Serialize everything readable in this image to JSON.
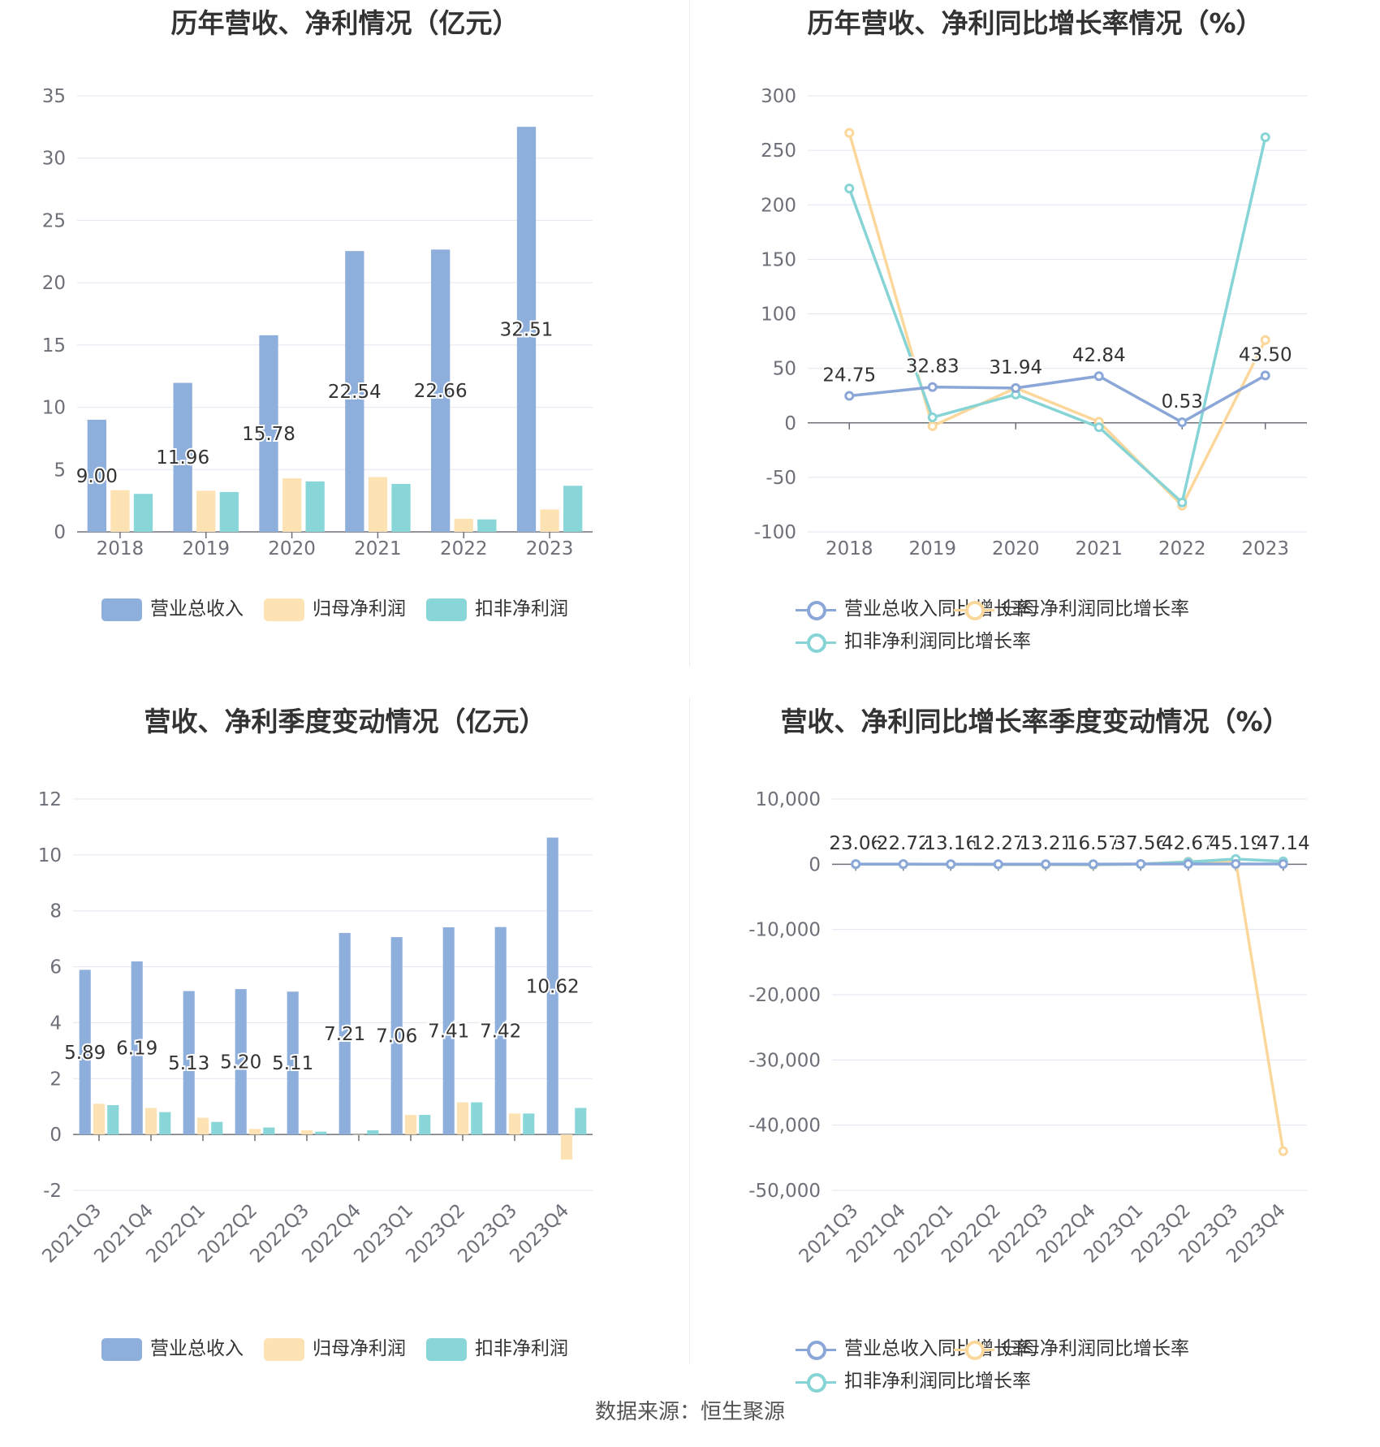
{
  "source": "数据来源：恒生聚源",
  "colors": {
    "revenue": "#8eaedb",
    "net": "#fde3b3",
    "deducted": "#88d6d8",
    "line_revenue": "#8aa7d8",
    "line_net": "#fbd79b",
    "line_deducted": "#86d4d6"
  },
  "chart_data": [
    {
      "id": "p0",
      "type": "bar",
      "title": "历年营收、净利情况（亿元）",
      "categories": [
        "2018",
        "2019",
        "2020",
        "2021",
        "2022",
        "2023"
      ],
      "ylim": [
        0,
        35
      ],
      "yticks": [
        0,
        5,
        10,
        15,
        20,
        25,
        30,
        35
      ],
      "ytick_labels": [
        "0",
        "5",
        "10",
        "15",
        "20",
        "25",
        "30",
        "35"
      ],
      "grid": true,
      "legend_position": "bottom",
      "series": [
        {
          "name": "营业总收入",
          "values": [
            9.0,
            11.96,
            15.78,
            22.54,
            22.66,
            32.51
          ],
          "labels": [
            "9.00",
            "11.96",
            "15.78",
            "22.54",
            "22.66",
            "32.51"
          ]
        },
        {
          "name": "归母净利润",
          "values": [
            3.35,
            3.3,
            4.3,
            4.4,
            1.05,
            1.8
          ]
        },
        {
          "name": "扣非净利润",
          "values": [
            3.05,
            3.2,
            4.05,
            3.85,
            1.0,
            3.7
          ]
        }
      ]
    },
    {
      "id": "p1",
      "type": "line",
      "title": "历年营收、净利同比增长率情况（%）",
      "categories": [
        "2018",
        "2019",
        "2020",
        "2021",
        "2022",
        "2023"
      ],
      "ylim": [
        -100,
        300
      ],
      "yticks": [
        -100,
        -50,
        0,
        50,
        100,
        150,
        200,
        250,
        300
      ],
      "ytick_labels": [
        "-100",
        "-50",
        "0",
        "50",
        "100",
        "150",
        "200",
        "250",
        "300"
      ],
      "grid": true,
      "legend_position": "bottom",
      "series": [
        {
          "name": "营业总收入同比增长率",
          "values": [
            24.75,
            32.83,
            31.94,
            42.84,
            0.53,
            43.5
          ],
          "labels": [
            "24.75",
            "32.83",
            "31.94",
            "42.84",
            "0.53",
            "43.50"
          ]
        },
        {
          "name": "归母净利润同比增长率",
          "values": [
            266,
            -3,
            32,
            1,
            -76,
            76
          ]
        },
        {
          "name": "扣非净利润同比增长率",
          "values": [
            215,
            5,
            26,
            -4,
            -73,
            262
          ]
        }
      ]
    },
    {
      "id": "p2",
      "type": "bar",
      "title": "营收、净利季度变动情况（亿元）",
      "categories": [
        "2021Q3",
        "2021Q4",
        "2022Q1",
        "2022Q2",
        "2022Q3",
        "2022Q4",
        "2023Q1",
        "2023Q2",
        "2023Q3",
        "2023Q4"
      ],
      "ylim": [
        -2,
        12
      ],
      "yticks": [
        -2,
        0,
        2,
        4,
        6,
        8,
        10,
        12
      ],
      "ytick_labels": [
        "-2",
        "0",
        "2",
        "4",
        "6",
        "8",
        "10",
        "12"
      ],
      "grid": true,
      "legend_position": "bottom",
      "series": [
        {
          "name": "营业总收入",
          "values": [
            5.89,
            6.19,
            5.13,
            5.2,
            5.11,
            7.21,
            7.06,
            7.41,
            7.42,
            10.62
          ],
          "labels": [
            "5.89",
            "6.19",
            "5.13",
            "5.20",
            "5.11",
            "7.21",
            "7.06",
            "7.41",
            "7.42",
            "10.62"
          ]
        },
        {
          "name": "归母净利润",
          "values": [
            1.1,
            0.95,
            0.6,
            0.2,
            0.15,
            0.0,
            0.7,
            1.15,
            0.75,
            -0.9
          ]
        },
        {
          "name": "扣非净利润",
          "values": [
            1.05,
            0.8,
            0.45,
            0.25,
            0.1,
            0.15,
            0.7,
            1.15,
            0.75,
            0.95
          ]
        }
      ]
    },
    {
      "id": "p3",
      "type": "line",
      "title": "营收、净利同比增长率季度变动情况（%）",
      "categories": [
        "2021Q3",
        "2021Q4",
        "2022Q1",
        "2022Q2",
        "2022Q3",
        "2022Q4",
        "2023Q1",
        "2023Q2",
        "2023Q3",
        "2023Q4"
      ],
      "ylim": [
        -50000,
        10000
      ],
      "yticks": [
        -50000,
        -40000,
        -30000,
        -20000,
        -10000,
        0,
        10000
      ],
      "ytick_labels": [
        "-50,000",
        "-40,000",
        "-30,000",
        "-20,000",
        "-10,000",
        "0",
        "10,000"
      ],
      "grid": true,
      "legend_position": "bottom",
      "series": [
        {
          "name": "营业总收入同比增长率",
          "values": [
            23.06,
            22.72,
            13.16,
            12.27,
            13.21,
            16.57,
            37.56,
            42.67,
            45.19,
            47.14
          ],
          "labels": [
            "23.06",
            "22.72",
            "13.16",
            "12.27",
            "13.21",
            "16.57",
            "37.56",
            "42.67",
            "45.19",
            "47.14"
          ]
        },
        {
          "name": "归母净利润同比增长率",
          "values": [
            10,
            5,
            -20,
            -60,
            -70,
            -100,
            30,
            400,
            500,
            -44000
          ]
        },
        {
          "name": "扣非净利润同比增长率",
          "values": [
            15,
            10,
            -10,
            -30,
            -40,
            -50,
            20,
            350,
            800,
            450
          ]
        }
      ]
    }
  ]
}
